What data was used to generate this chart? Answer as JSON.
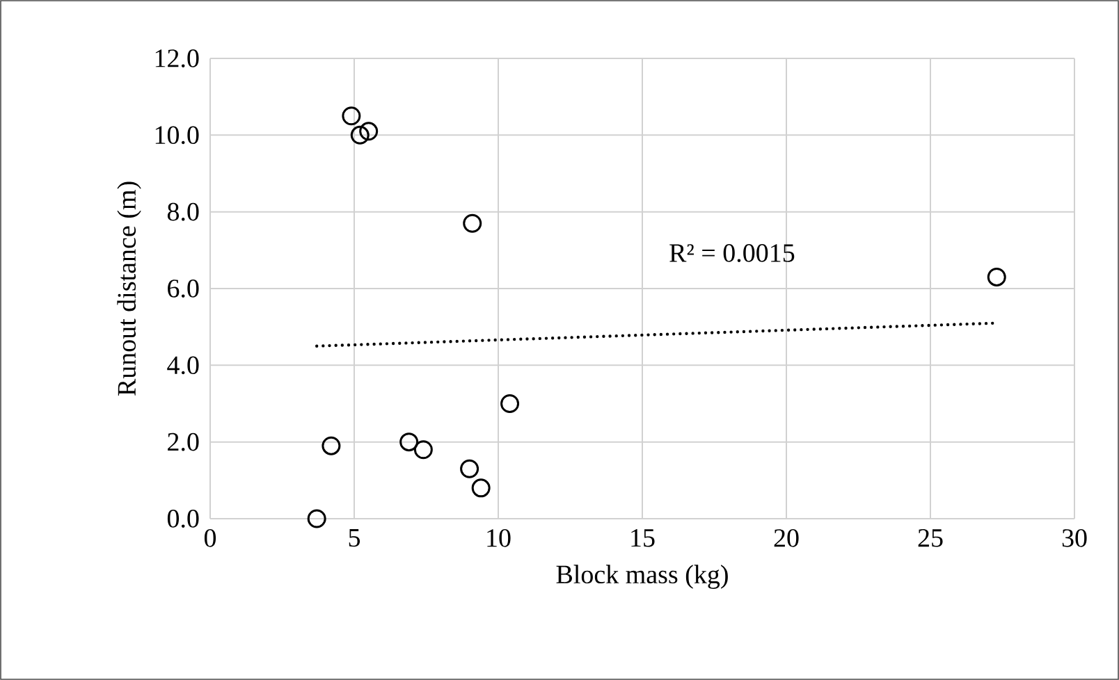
{
  "chart_data": {
    "type": "scatter",
    "xlabel": "Block mass (kg)",
    "ylabel": "Runout distance (m)",
    "xlim": [
      0,
      30
    ],
    "xticks": [
      0,
      5,
      10,
      15,
      20,
      25,
      30
    ],
    "ylim": [
      0,
      12
    ],
    "yticks": [
      {
        "value": 0,
        "label": "0.0"
      },
      {
        "value": 2,
        "label": "2.0"
      },
      {
        "value": 4,
        "label": "4.0"
      },
      {
        "value": 6,
        "label": "6.0"
      },
      {
        "value": 8,
        "label": "8.0"
      },
      {
        "value": 10,
        "label": "10.0"
      },
      {
        "value": 12,
        "label": "12.0"
      }
    ],
    "grid": true,
    "marker": "circle",
    "series": [
      {
        "color": "#000000",
        "x": [
          3.7,
          4.2,
          4.9,
          5.2,
          5.5,
          9.1,
          10.4,
          6.9,
          7.4,
          9.0,
          9.4,
          27.3
        ],
        "values": [
          0.0,
          1.9,
          10.5,
          10.0,
          10.1,
          7.7,
          3.0,
          2.0,
          1.8,
          1.3,
          0.8,
          6.3
        ]
      },
      {
        "type": "line",
        "color": "#000000",
        "line_style": "dotted",
        "marker": "none",
        "x": [
          3.7,
          27.3
        ],
        "values": [
          4.5,
          5.1
        ]
      }
    ],
    "annotations": [
      "R² = 0.0015"
    ]
  }
}
